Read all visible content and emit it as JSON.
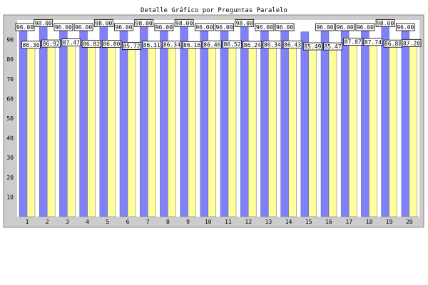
{
  "chart_data": {
    "type": "bar",
    "title": "Detalle Gráfico por Preguntas Paralelo",
    "xlabel": "",
    "ylabel": "",
    "ylim": [
      0,
      100
    ],
    "yticks": [
      10,
      20,
      30,
      40,
      50,
      60,
      70,
      80,
      90
    ],
    "grid": false,
    "categories": [
      "1",
      "2",
      "3",
      "4",
      "5",
      "6",
      "7",
      "8",
      "9",
      "10",
      "11",
      "12",
      "13",
      "14",
      "15",
      "16",
      "17",
      "18",
      "19",
      "20"
    ],
    "series": [
      {
        "color": "#8080f8",
        "values": [
          96.0,
          98.0,
          96.0,
          96.0,
          98.0,
          96.0,
          98.0,
          96.0,
          98.0,
          96.0,
          96.0,
          98.0,
          96.0,
          96.0,
          94.0,
          96.0,
          96.0,
          96.0,
          98.0,
          96.0
        ],
        "labels": [
          "96.00",
          "98.00",
          "96.00",
          "96.00",
          "98.00",
          "96.00",
          "98.00",
          "96.00",
          "98.00",
          "96.00",
          "96.00",
          "98.00",
          "96.00",
          "96.00",
          "",
          "96.00",
          "96.00",
          "96.00",
          "98.00",
          "96.00"
        ]
      },
      {
        "color": "#ffff99",
        "values": [
          86.3,
          86.92,
          87.47,
          86.82,
          86.8,
          85.72,
          86.31,
          86.34,
          86.16,
          86.46,
          86.52,
          86.24,
          86.34,
          86.43,
          85.49,
          85.47,
          87.87,
          87.74,
          86.88,
          87.2
        ],
        "labels": [
          "86.30",
          "86.92",
          "87.47",
          "86.82",
          "86.80",
          "85.72",
          "86.31",
          "86.34",
          "86.16",
          "86.46",
          "86.52",
          "86.24",
          "86.34",
          "86.43",
          "85.49",
          "85.47",
          "87.87",
          "87.74",
          "86.88",
          "87.20"
        ]
      }
    ],
    "colors": {
      "frame_fill": "#cccccc",
      "plot_fill": "#ffffff",
      "series1": "#8080f8",
      "series2": "#ffff99"
    }
  }
}
